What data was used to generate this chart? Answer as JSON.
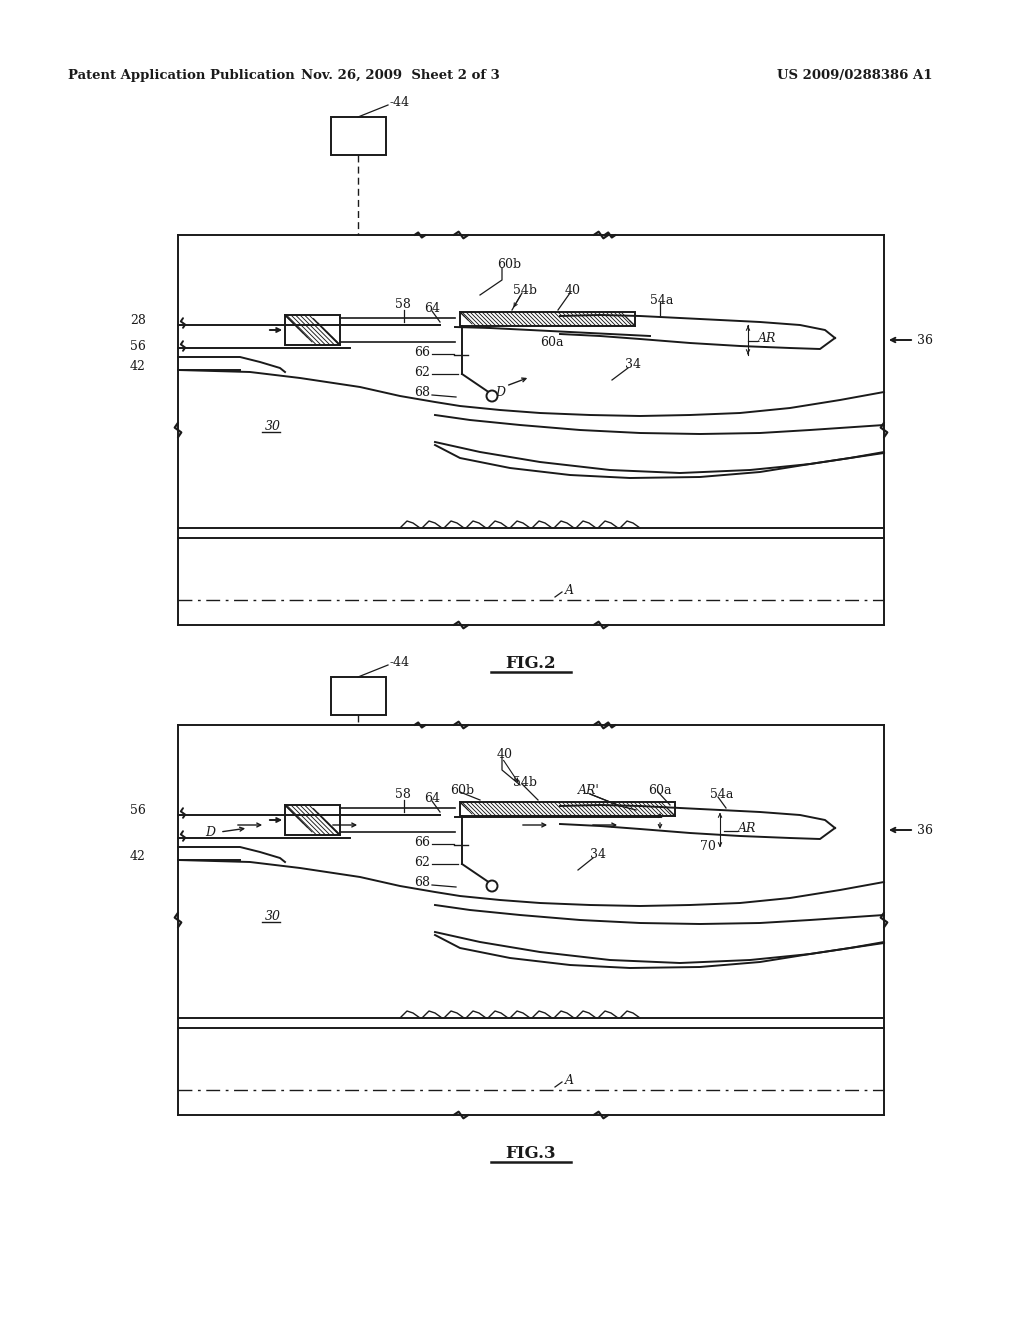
{
  "header_left": "Patent Application Publication",
  "header_mid": "Nov. 26, 2009  Sheet 2 of 3",
  "header_right": "US 2009/0288386 A1",
  "fig2_label": "FIG.2",
  "fig3_label": "FIG.3",
  "bg_color": "#ffffff",
  "line_color": "#1a1a1a"
}
